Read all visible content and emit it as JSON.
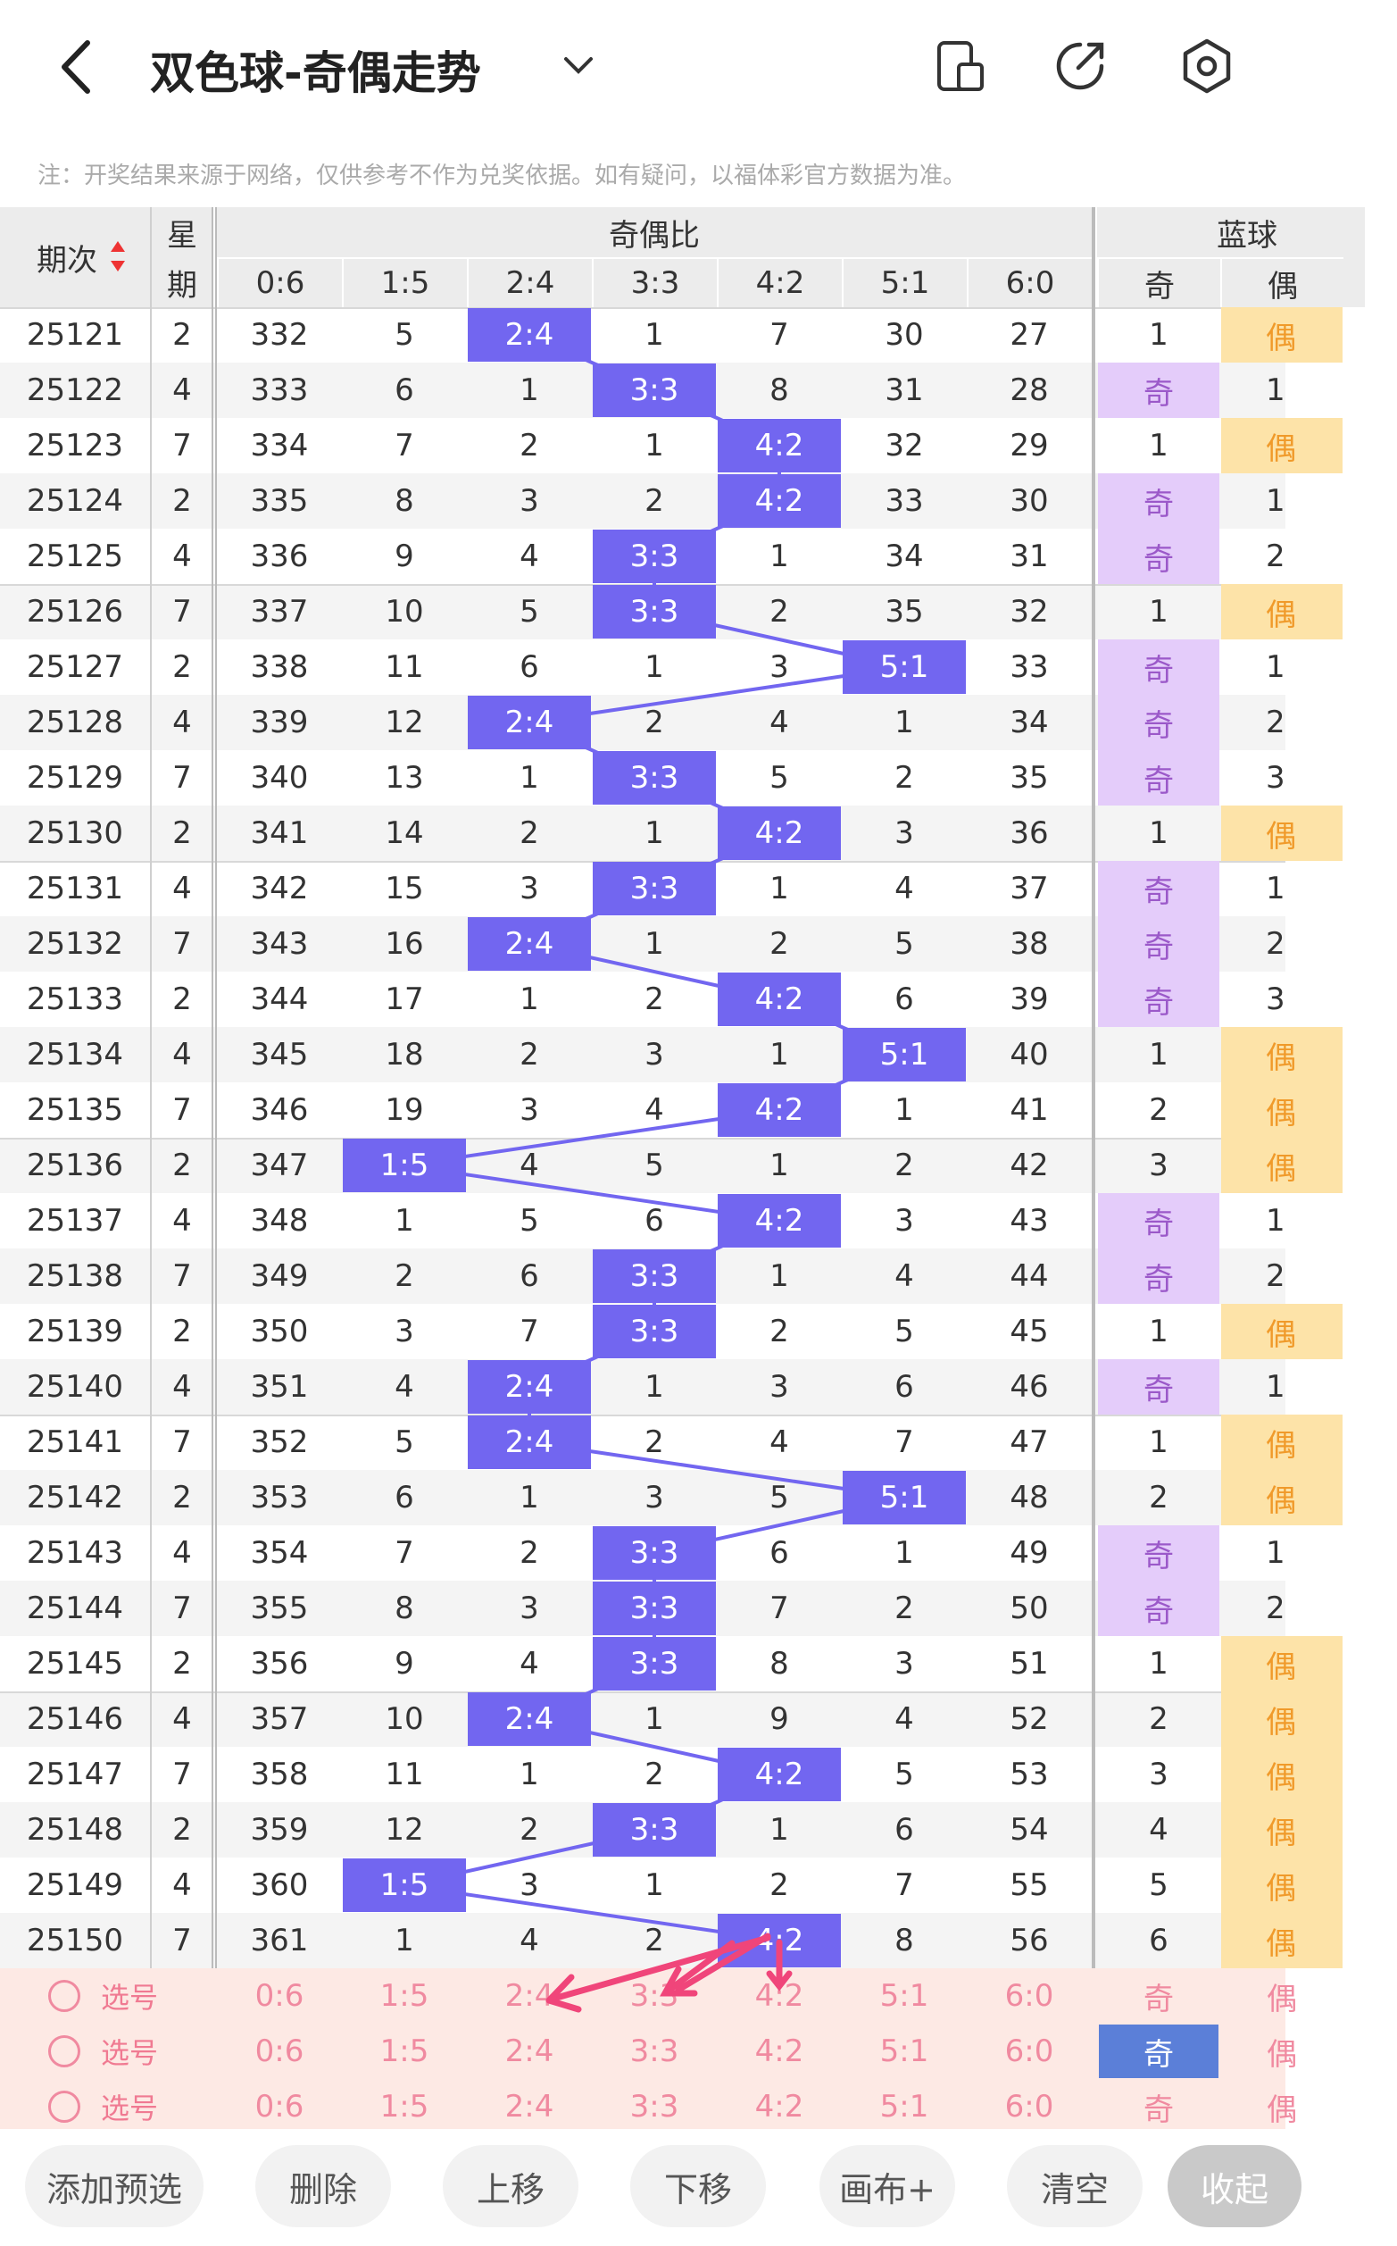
{
  "header": {
    "title": "双色球-奇偶走势"
  },
  "note": "注：开奖结果来源于网络，仅供参考不作为兑奖依据。如有疑问，以福体彩官方数据为准。",
  "table": {
    "columns": {
      "issue": "期次",
      "weekday_top": "星",
      "weekday_bottom": "期",
      "ratio_group": "奇偶比",
      "blue_group": "蓝球",
      "ratios": [
        "0:6",
        "1:5",
        "2:4",
        "3:3",
        "4:2",
        "5:1",
        "6:0"
      ],
      "blue": [
        "奇",
        "偶"
      ]
    },
    "rows": [
      {
        "issue": "25121",
        "weekday": 2,
        "ratios": [
          332,
          5,
          "2:4",
          1,
          7,
          30,
          27
        ],
        "blue": [
          1,
          "偶"
        ]
      },
      {
        "issue": "25122",
        "weekday": 4,
        "ratios": [
          333,
          6,
          1,
          "3:3",
          8,
          31,
          28
        ],
        "blue": [
          "奇",
          1
        ]
      },
      {
        "issue": "25123",
        "weekday": 7,
        "ratios": [
          334,
          7,
          2,
          1,
          "4:2",
          32,
          29
        ],
        "blue": [
          1,
          "偶"
        ]
      },
      {
        "issue": "25124",
        "weekday": 2,
        "ratios": [
          335,
          8,
          3,
          2,
          "4:2",
          33,
          30
        ],
        "blue": [
          "奇",
          1
        ]
      },
      {
        "issue": "25125",
        "weekday": 4,
        "ratios": [
          336,
          9,
          4,
          "3:3",
          1,
          34,
          31
        ],
        "blue": [
          "奇",
          2
        ]
      },
      {
        "issue": "25126",
        "weekday": 7,
        "ratios": [
          337,
          10,
          5,
          "3:3",
          2,
          35,
          32
        ],
        "blue": [
          1,
          "偶"
        ]
      },
      {
        "issue": "25127",
        "weekday": 2,
        "ratios": [
          338,
          11,
          6,
          1,
          3,
          "5:1",
          33
        ],
        "blue": [
          "奇",
          1
        ]
      },
      {
        "issue": "25128",
        "weekday": 4,
        "ratios": [
          339,
          12,
          "2:4",
          2,
          4,
          1,
          34
        ],
        "blue": [
          "奇",
          2
        ]
      },
      {
        "issue": "25129",
        "weekday": 7,
        "ratios": [
          340,
          13,
          1,
          "3:3",
          5,
          2,
          35
        ],
        "blue": [
          "奇",
          3
        ]
      },
      {
        "issue": "25130",
        "weekday": 2,
        "ratios": [
          341,
          14,
          2,
          1,
          "4:2",
          3,
          36
        ],
        "blue": [
          1,
          "偶"
        ]
      },
      {
        "issue": "25131",
        "weekday": 4,
        "ratios": [
          342,
          15,
          3,
          "3:3",
          1,
          4,
          37
        ],
        "blue": [
          "奇",
          1
        ]
      },
      {
        "issue": "25132",
        "weekday": 7,
        "ratios": [
          343,
          16,
          "2:4",
          1,
          2,
          5,
          38
        ],
        "blue": [
          "奇",
          2
        ]
      },
      {
        "issue": "25133",
        "weekday": 2,
        "ratios": [
          344,
          17,
          1,
          2,
          "4:2",
          6,
          39
        ],
        "blue": [
          "奇",
          3
        ]
      },
      {
        "issue": "25134",
        "weekday": 4,
        "ratios": [
          345,
          18,
          2,
          3,
          1,
          "5:1",
          40
        ],
        "blue": [
          1,
          "偶"
        ]
      },
      {
        "issue": "25135",
        "weekday": 7,
        "ratios": [
          346,
          19,
          3,
          4,
          "4:2",
          1,
          41
        ],
        "blue": [
          2,
          "偶"
        ]
      },
      {
        "issue": "25136",
        "weekday": 2,
        "ratios": [
          347,
          "1:5",
          4,
          5,
          1,
          2,
          42
        ],
        "blue": [
          3,
          "偶"
        ]
      },
      {
        "issue": "25137",
        "weekday": 4,
        "ratios": [
          348,
          1,
          5,
          6,
          "4:2",
          3,
          43
        ],
        "blue": [
          "奇",
          1
        ]
      },
      {
        "issue": "25138",
        "weekday": 7,
        "ratios": [
          349,
          2,
          6,
          "3:3",
          1,
          4,
          44
        ],
        "blue": [
          "奇",
          2
        ]
      },
      {
        "issue": "25139",
        "weekday": 2,
        "ratios": [
          350,
          3,
          7,
          "3:3",
          2,
          5,
          45
        ],
        "blue": [
          1,
          "偶"
        ]
      },
      {
        "issue": "25140",
        "weekday": 4,
        "ratios": [
          351,
          4,
          "2:4",
          1,
          3,
          6,
          46
        ],
        "blue": [
          "奇",
          1
        ]
      },
      {
        "issue": "25141",
        "weekday": 7,
        "ratios": [
          352,
          5,
          "2:4",
          2,
          4,
          7,
          47
        ],
        "blue": [
          1,
          "偶"
        ]
      },
      {
        "issue": "25142",
        "weekday": 2,
        "ratios": [
          353,
          6,
          1,
          3,
          5,
          "5:1",
          48
        ],
        "blue": [
          2,
          "偶"
        ]
      },
      {
        "issue": "25143",
        "weekday": 4,
        "ratios": [
          354,
          7,
          2,
          "3:3",
          6,
          1,
          49
        ],
        "blue": [
          "奇",
          1
        ]
      },
      {
        "issue": "25144",
        "weekday": 7,
        "ratios": [
          355,
          8,
          3,
          "3:3",
          7,
          2,
          50
        ],
        "blue": [
          "奇",
          2
        ]
      },
      {
        "issue": "25145",
        "weekday": 2,
        "ratios": [
          356,
          9,
          4,
          "3:3",
          8,
          3,
          51
        ],
        "blue": [
          1,
          "偶"
        ]
      },
      {
        "issue": "25146",
        "weekday": 4,
        "ratios": [
          357,
          10,
          "2:4",
          1,
          9,
          4,
          52
        ],
        "blue": [
          2,
          "偶"
        ]
      },
      {
        "issue": "25147",
        "weekday": 7,
        "ratios": [
          358,
          11,
          1,
          2,
          "4:2",
          5,
          53
        ],
        "blue": [
          3,
          "偶"
        ]
      },
      {
        "issue": "25148",
        "weekday": 2,
        "ratios": [
          359,
          12,
          2,
          "3:3",
          1,
          6,
          54
        ],
        "blue": [
          4,
          "偶"
        ]
      },
      {
        "issue": "25149",
        "weekday": 4,
        "ratios": [
          360,
          "1:5",
          3,
          1,
          2,
          7,
          55
        ],
        "blue": [
          5,
          "偶"
        ]
      },
      {
        "issue": "25150",
        "weekday": 7,
        "ratios": [
          361,
          1,
          4,
          2,
          "4:2",
          8,
          56
        ],
        "blue": [
          6,
          "偶"
        ]
      }
    ]
  },
  "picks": [
    {
      "label": "选号",
      "ratios": [
        "0:6",
        "1:5",
        "2:4",
        "3:3",
        "4:2",
        "5:1",
        "6:0"
      ],
      "blue": [
        "奇",
        "偶"
      ],
      "blue_selected": false
    },
    {
      "label": "选号",
      "ratios": [
        "0:6",
        "1:5",
        "2:4",
        "3:3",
        "4:2",
        "5:1",
        "6:0"
      ],
      "blue": [
        "奇",
        "偶"
      ],
      "blue_selected": true
    },
    {
      "label": "选号",
      "ratios": [
        "0:6",
        "1:5",
        "2:4",
        "3:3",
        "4:2",
        "5:1",
        "6:0"
      ],
      "blue": [
        "奇",
        "偶"
      ],
      "blue_selected": false
    }
  ],
  "buttons": [
    "添加预选",
    "删除",
    "上移",
    "下移",
    "画布+",
    "清空",
    "收起"
  ]
}
